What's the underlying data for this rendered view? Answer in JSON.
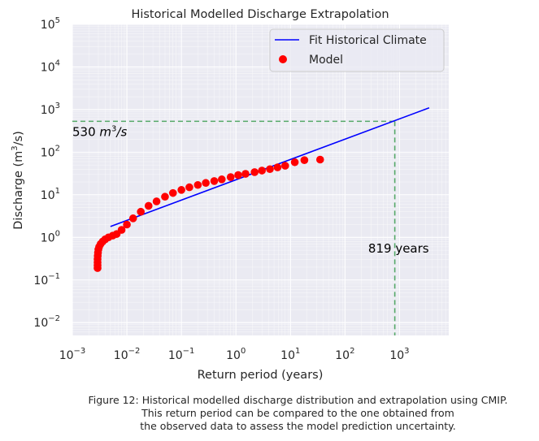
{
  "chart_data": {
    "type": "scatter",
    "title": "Historical Modelled Discharge Extrapolation",
    "xlabel": "Return period (years)",
    "ylabel_main": "Discharge (m",
    "ylabel_sup": "3",
    "ylabel_tail": "/s)",
    "x_scale": "log",
    "y_scale": "log",
    "xlim": [
      0.001,
      8000
    ],
    "ylim": [
      0.005,
      100000
    ],
    "x_ticks": [
      0.001,
      0.01,
      0.1,
      1,
      10,
      100,
      1000
    ],
    "y_ticks": [
      0.01,
      0.1,
      1,
      10,
      100,
      1000,
      10000,
      100000
    ],
    "x_tick_labels": [
      {
        "base": "10",
        "exp": "−3"
      },
      {
        "base": "10",
        "exp": "−2"
      },
      {
        "base": "10",
        "exp": "−1"
      },
      {
        "base": "10",
        "exp": "0"
      },
      {
        "base": "10",
        "exp": "1"
      },
      {
        "base": "10",
        "exp": "2"
      },
      {
        "base": "10",
        "exp": "3"
      }
    ],
    "y_tick_labels": [
      {
        "base": "10",
        "exp": "−2"
      },
      {
        "base": "10",
        "exp": "−1"
      },
      {
        "base": "10",
        "exp": "0"
      },
      {
        "base": "10",
        "exp": "1"
      },
      {
        "base": "10",
        "exp": "2"
      },
      {
        "base": "10",
        "exp": "3"
      },
      {
        "base": "10",
        "exp": "4"
      },
      {
        "base": "10",
        "exp": "5"
      }
    ],
    "grid": true,
    "legend_position": "top-right",
    "series": [
      {
        "name": "Fit Historical Climate",
        "type": "line",
        "color": "#0000ff",
        "x": [
          0.005,
          3500
        ],
        "y": [
          1.8,
          1100
        ]
      },
      {
        "name": "Model",
        "type": "scatter",
        "color": "#ff0000",
        "x": [
          0.0029,
          0.0029,
          0.0029,
          0.0029,
          0.00292,
          0.00295,
          0.003,
          0.0031,
          0.0033,
          0.0036,
          0.004,
          0.0046,
          0.0055,
          0.0065,
          0.008,
          0.01,
          0.013,
          0.018,
          0.025,
          0.035,
          0.05,
          0.07,
          0.1,
          0.14,
          0.2,
          0.28,
          0.4,
          0.55,
          0.8,
          1.1,
          1.5,
          2.2,
          3.0,
          4.2,
          5.8,
          8.0,
          12,
          18,
          35
        ],
        "y": [
          0.19,
          0.22,
          0.26,
          0.31,
          0.37,
          0.44,
          0.52,
          0.6,
          0.7,
          0.8,
          0.9,
          1.0,
          1.1,
          1.2,
          1.5,
          2.0,
          2.8,
          4.0,
          5.5,
          7.0,
          9.0,
          11.0,
          13.0,
          15.0,
          17.0,
          19.0,
          21.0,
          23.0,
          26.0,
          29.0,
          31.0,
          34.0,
          37.0,
          40.0,
          44.0,
          48.0,
          58.0,
          65.0,
          67.0
        ]
      }
    ],
    "annotations": [
      {
        "type": "hline",
        "y": 530,
        "color": "#55a868",
        "label_value": "530 ",
        "label_unit": "m",
        "label_sup": "3",
        "label_tail": "/s"
      },
      {
        "type": "vline",
        "x": 819,
        "color": "#55a868",
        "label": "819 years"
      }
    ]
  },
  "caption": {
    "line1": "Figure 12: Historical modelled discharge distribution and extrapolation using CMIP.",
    "line2": "This return period can be compared to the one obtained from",
    "line3": "the observed data to assess the model prediction uncertainty."
  }
}
